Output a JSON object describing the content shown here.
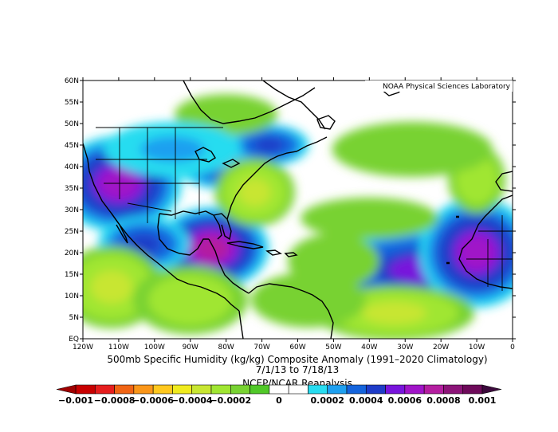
{
  "map": {
    "credit": "NOAA Physical Sciences Laboratory",
    "title_line1": "500mb Specific Humidity (kg/kg) Composite Anomaly (1991–2020 Climatology)",
    "title_line2": "7/1/13   to 7/18/13",
    "source": "NCEP/NCAR Reanalysis",
    "lat_labels": [
      "60N",
      "55N",
      "50N",
      "45N",
      "40N",
      "35N",
      "30N",
      "25N",
      "20N",
      "15N",
      "10N",
      "5N",
      "EQ"
    ],
    "lon_labels": [
      "120W",
      "110W",
      "100W",
      "90W",
      "80W",
      "70W",
      "60W",
      "50W",
      "40W",
      "30W",
      "20W",
      "10W",
      "0"
    ],
    "lat_range": [
      0,
      60
    ],
    "lon_range": [
      -120,
      0
    ]
  },
  "colorbar": {
    "labels": [
      "−0.001",
      "−0.0008",
      "−0.0006",
      "−0.0004",
      "−0.0002",
      "0",
      "0.0002",
      "0.0004",
      "0.0006",
      "0.0008",
      "0.001"
    ],
    "colors": [
      "#c80000",
      "#e61e1e",
      "#f06414",
      "#fa9619",
      "#ffc81e",
      "#f0eb1e",
      "#c8e632",
      "#a0e632",
      "#78d232",
      "#50c828",
      "#ffffff",
      "#ffffff",
      "#28dcf0",
      "#1ea0f0",
      "#1464dc",
      "#1e3cc8",
      "#7814dc",
      "#a014c8",
      "#b41ea0",
      "#8c1478",
      "#6e0a5a"
    ],
    "left_arrow_color": "#a00000",
    "right_arrow_color": "#3c0a3c"
  },
  "anomaly_blobs": [
    {
      "lon": -110,
      "lat": 36,
      "rx": 11,
      "ry": 7,
      "level": 0.0007
    },
    {
      "lon": -84,
      "lat": 21,
      "rx": 10,
      "ry": 6,
      "level": 0.0008
    },
    {
      "lon": -103,
      "lat": 22,
      "rx": 8,
      "ry": 4,
      "level": 0.0005
    },
    {
      "lon": -80,
      "lat": 41,
      "rx": 9,
      "ry": 4,
      "level": 0.0006
    },
    {
      "lon": -68,
      "lat": 45,
      "rx": 7,
      "ry": 3,
      "level": 0.0005
    },
    {
      "lon": -25,
      "lat": 16,
      "rx": 18,
      "ry": 6,
      "level": 0.0006
    },
    {
      "lon": -10,
      "lat": 20,
      "rx": 10,
      "ry": 8,
      "level": 0.0007
    },
    {
      "lon": -112,
      "lat": 12,
      "rx": 9,
      "ry": 6,
      "level": -0.0004
    },
    {
      "lon": -90,
      "lat": 9,
      "rx": 10,
      "ry": 5,
      "level": -0.0003
    },
    {
      "lon": -72,
      "lat": 34,
      "rx": 7,
      "ry": 5,
      "level": -0.0004
    },
    {
      "lon": -33,
      "lat": 6,
      "rx": 14,
      "ry": 4,
      "level": -0.0004
    },
    {
      "lon": -10,
      "lat": 37,
      "rx": 5,
      "ry": 5,
      "level": -0.0003
    },
    {
      "lon": -80,
      "lat": 52,
      "rx": 9,
      "ry": 3,
      "level": -0.0002
    },
    {
      "lon": -28,
      "lat": 44,
      "rx": 14,
      "ry": 4,
      "level": -0.0002
    },
    {
      "lon": -40,
      "lat": 28,
      "rx": 12,
      "ry": 3,
      "level": -0.0002
    },
    {
      "lon": -50,
      "lat": 18,
      "rx": 8,
      "ry": 4,
      "level": -0.0002
    },
    {
      "lon": -95,
      "lat": 44,
      "rx": 12,
      "ry": 4,
      "level": 0.0003
    },
    {
      "lon": -57,
      "lat": 9,
      "rx": 10,
      "ry": 4,
      "level": -0.0002
    }
  ]
}
